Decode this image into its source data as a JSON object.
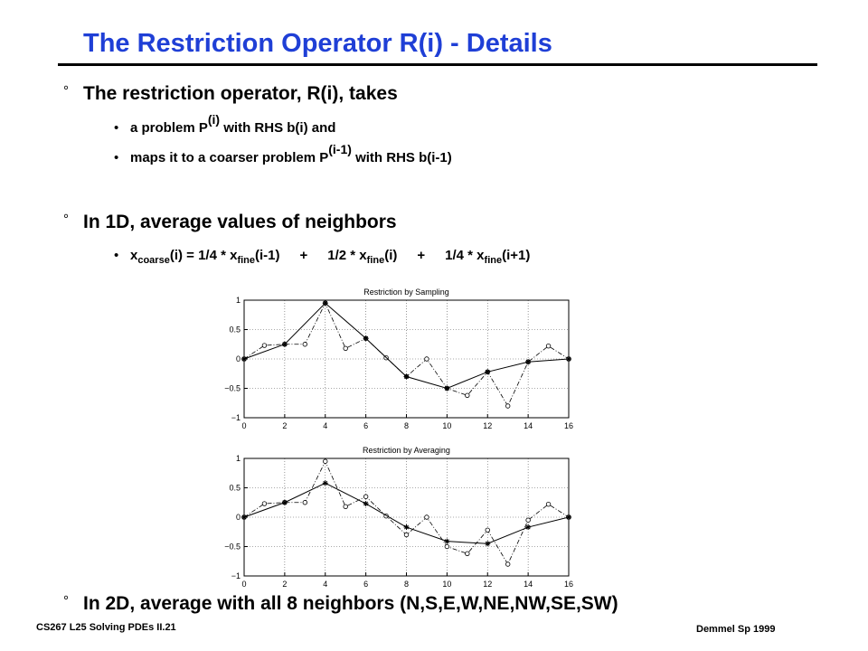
{
  "slide": {
    "title": "The Restriction Operator R(i) - Details",
    "bullet_mark": "°",
    "sub_dot": "•",
    "bullets": [
      {
        "text": "The restriction operator, R(i), takes"
      },
      {
        "text": "In 1D, average values of neighbors"
      },
      {
        "text": "In 2D, average with all 8 neighbors (N,S,E,W,NE,NW,SE,SW)"
      }
    ],
    "sub1": {
      "pre": "a problem P",
      "sup": "(i)",
      "post": " with RHS b(i) and"
    },
    "sub2": {
      "pre": "maps it to a coarser problem P",
      "sup": "(i-1)",
      "post": " with RHS b(i-1)"
    },
    "eq": {
      "x1": "x",
      "s1": "coarse",
      "t1": "(i) = 1/4 * x",
      "s2": "fine",
      "t2": "(i-1)",
      "p1": "+",
      "t3": "1/2 * x",
      "s3": "fine",
      "t4": "(i)",
      "p2": "+",
      "t5": "1/4 * x",
      "s4": "fine",
      "t6": "(i+1)"
    },
    "footer_left": "CS267  L25 Solving PDEs II.21",
    "footer_right": "Demmel Sp 1999"
  },
  "chart_data": [
    {
      "type": "line",
      "title": "Restriction by Sampling",
      "xlim": [
        0,
        16
      ],
      "ylim": [
        -1,
        1
      ],
      "xticks": [
        0,
        2,
        4,
        6,
        8,
        10,
        12,
        14,
        16
      ],
      "yticks": [
        1,
        0.5,
        0,
        -0.5,
        -1
      ],
      "ytick_labels": [
        "1",
        "0.5",
        "0",
        "−0.5",
        "−1"
      ],
      "grid": true,
      "series": [
        {
          "style": "dash-dot, circle markers",
          "x": [
            0,
            1,
            2,
            3,
            4,
            5,
            6,
            7,
            8,
            9,
            10,
            11,
            12,
            13,
            14,
            15,
            16
          ],
          "y": [
            0,
            0.23,
            0.25,
            0.25,
            0.95,
            0.18,
            0.35,
            0.02,
            -0.3,
            0,
            -0.5,
            -0.62,
            -0.22,
            -0.8,
            -0.05,
            0.22,
            0
          ]
        },
        {
          "style": "solid, star markers",
          "x": [
            0,
            2,
            4,
            6,
            8,
            10,
            12,
            14,
            16
          ],
          "y": [
            0,
            0.25,
            0.95,
            0.35,
            -0.3,
            -0.5,
            -0.22,
            -0.05,
            0
          ]
        }
      ]
    },
    {
      "type": "line",
      "title": "Restriction by Averaging",
      "xlim": [
        0,
        16
      ],
      "ylim": [
        -1,
        1
      ],
      "xticks": [
        0,
        2,
        4,
        6,
        8,
        10,
        12,
        14,
        16
      ],
      "yticks": [
        1,
        0.5,
        0,
        -0.5,
        -1
      ],
      "ytick_labels": [
        "1",
        "0.5",
        "0",
        "−0.5",
        "−1"
      ],
      "grid": true,
      "series": [
        {
          "style": "dash-dot, circle markers",
          "x": [
            0,
            1,
            2,
            3,
            4,
            5,
            6,
            7,
            8,
            9,
            10,
            11,
            12,
            13,
            14,
            15,
            16
          ],
          "y": [
            0,
            0.23,
            0.25,
            0.25,
            0.95,
            0.18,
            0.35,
            0.02,
            -0.3,
            0,
            -0.5,
            -0.62,
            -0.22,
            -0.8,
            -0.05,
            0.22,
            0
          ]
        },
        {
          "style": "solid, star markers",
          "x": [
            0,
            2,
            4,
            6,
            8,
            10,
            12,
            14,
            16
          ],
          "y": [
            0,
            0.25,
            0.58,
            0.23,
            -0.17,
            -0.41,
            -0.45,
            -0.17,
            0
          ]
        }
      ]
    }
  ]
}
